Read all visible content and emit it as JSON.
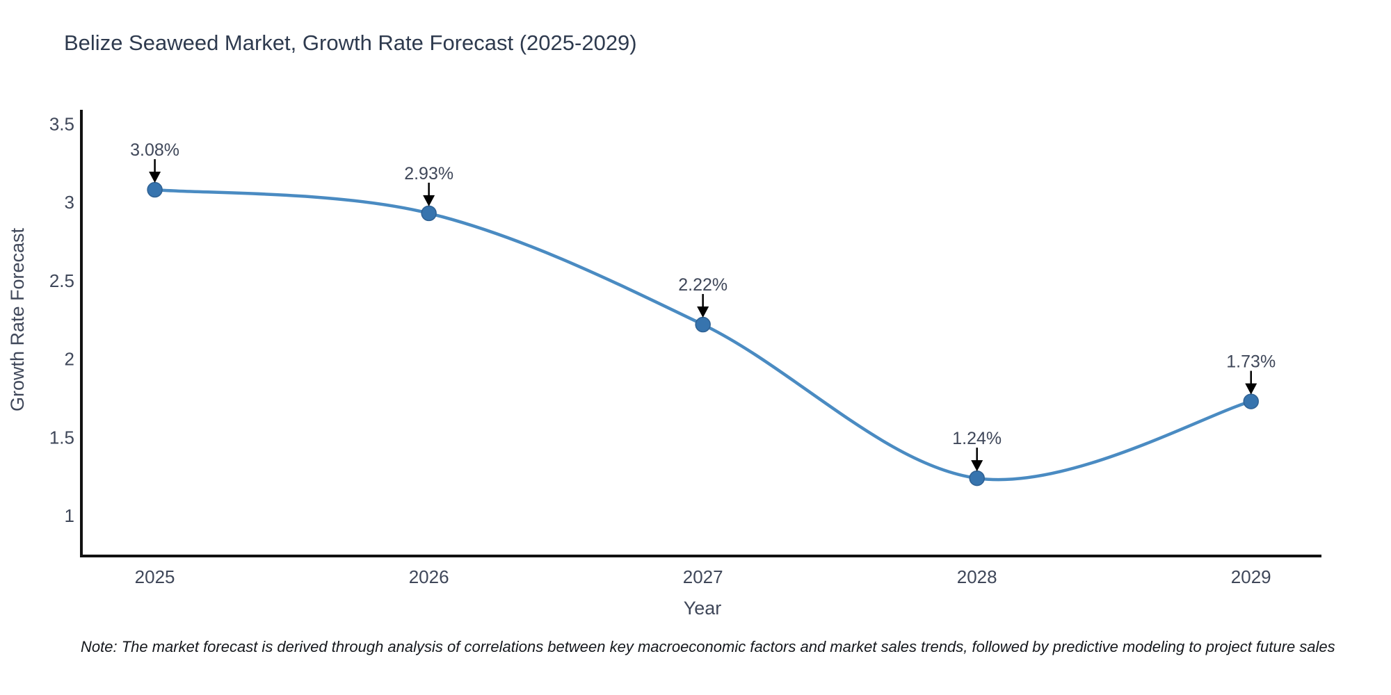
{
  "title": "Belize Seaweed Market, Growth Rate Forecast (2025-2029)",
  "note": "Note: The market forecast is derived through analysis of correlations between key macroeconomic factors and market sales trends, followed by predictive modeling to project future sales",
  "chart_data": {
    "type": "line",
    "line_shape": "spline",
    "title": "Belize Seaweed Market, Growth Rate Forecast (2025-2029)",
    "xlabel": "Year",
    "ylabel": "Growth Rate Forecast",
    "categories": [
      2025,
      2026,
      2027,
      2028,
      2029
    ],
    "series": [
      {
        "name": "Growth Rate Forecast",
        "values": [
          3.08,
          2.93,
          2.22,
          1.24,
          1.73
        ]
      }
    ],
    "point_labels": [
      "3.08%",
      "2.93%",
      "2.22%",
      "1.24%",
      "1.73%"
    ],
    "yticks": [
      3.5,
      3,
      2.5,
      2,
      1.5,
      1
    ],
    "xticks": [
      2025,
      2026,
      2027,
      2028,
      2029
    ],
    "xlim": [
      2024.732,
      2029.257
    ],
    "ylim": [
      0.744,
      3.581
    ],
    "grid": false,
    "legend": "none",
    "colors": {
      "line": "#4a8bc2",
      "marker_fill": "#3774ae",
      "marker_edge": "#2f6193",
      "axis_line": "#111111",
      "tick_text": "#3f4759",
      "annotation_text": "#3f4759",
      "arrow": "#000000",
      "title_text": "#2e3a4e",
      "background": "#ffffff"
    }
  }
}
